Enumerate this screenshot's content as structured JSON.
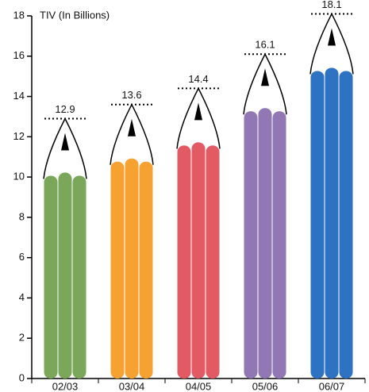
{
  "chart_data": {
    "type": "pencil-bar",
    "y_label": "TIV (In Billions)",
    "categories": [
      "02/03",
      "03/04",
      "04/05",
      "05/06",
      "06/07"
    ],
    "values": [
      12.9,
      13.6,
      14.4,
      16.1,
      18.1
    ],
    "colors": [
      "#7ba75a",
      "#f6a233",
      "#e25a63",
      "#9277b5",
      "#2e72c2"
    ],
    "ylim": [
      0,
      18
    ],
    "yticks": [
      0,
      2,
      4,
      6,
      8,
      10,
      12,
      14,
      16,
      18
    ]
  }
}
